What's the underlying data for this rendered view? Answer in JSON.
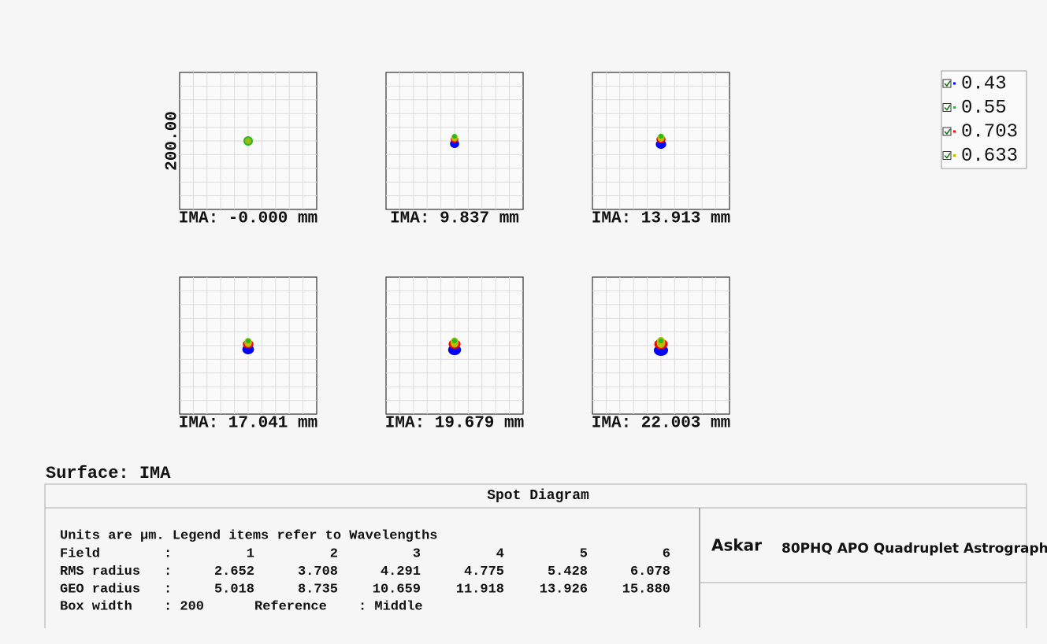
{
  "panels": [
    {
      "label": "IMA: -0.000 mm"
    },
    {
      "label": "IMA: 9.837 mm"
    },
    {
      "label": "IMA: 13.913 mm"
    },
    {
      "label": "IMA: 17.041 mm"
    },
    {
      "label": "IMA: 19.679 mm"
    },
    {
      "label": "IMA: 22.003 mm"
    }
  ],
  "axis_label": "200.00",
  "legend": [
    "0.43",
    "0.55",
    "0.703",
    "0.633"
  ],
  "surface": "Surface: IMA",
  "table": {
    "title": "Spot Diagram",
    "note": "Units are µm. Legend items refer to Wavelengths",
    "rows": [
      [
        "Field",
        ":",
        "1",
        "2",
        "3",
        "4",
        "5",
        "6"
      ],
      [
        "RMS radius",
        ":",
        "2.652",
        "3.708",
        "4.291",
        "4.775",
        "5.428",
        "6.078"
      ],
      [
        "GEO radius",
        ":",
        "5.018",
        "8.735",
        "10.659",
        "11.918",
        "13.926",
        "15.880"
      ]
    ],
    "footer": [
      "Box width",
      ": 200",
      "Reference",
      ": Middle"
    ],
    "brand": "Askar",
    "product": "80PHQ APO Quadruplet Astrograph"
  }
}
